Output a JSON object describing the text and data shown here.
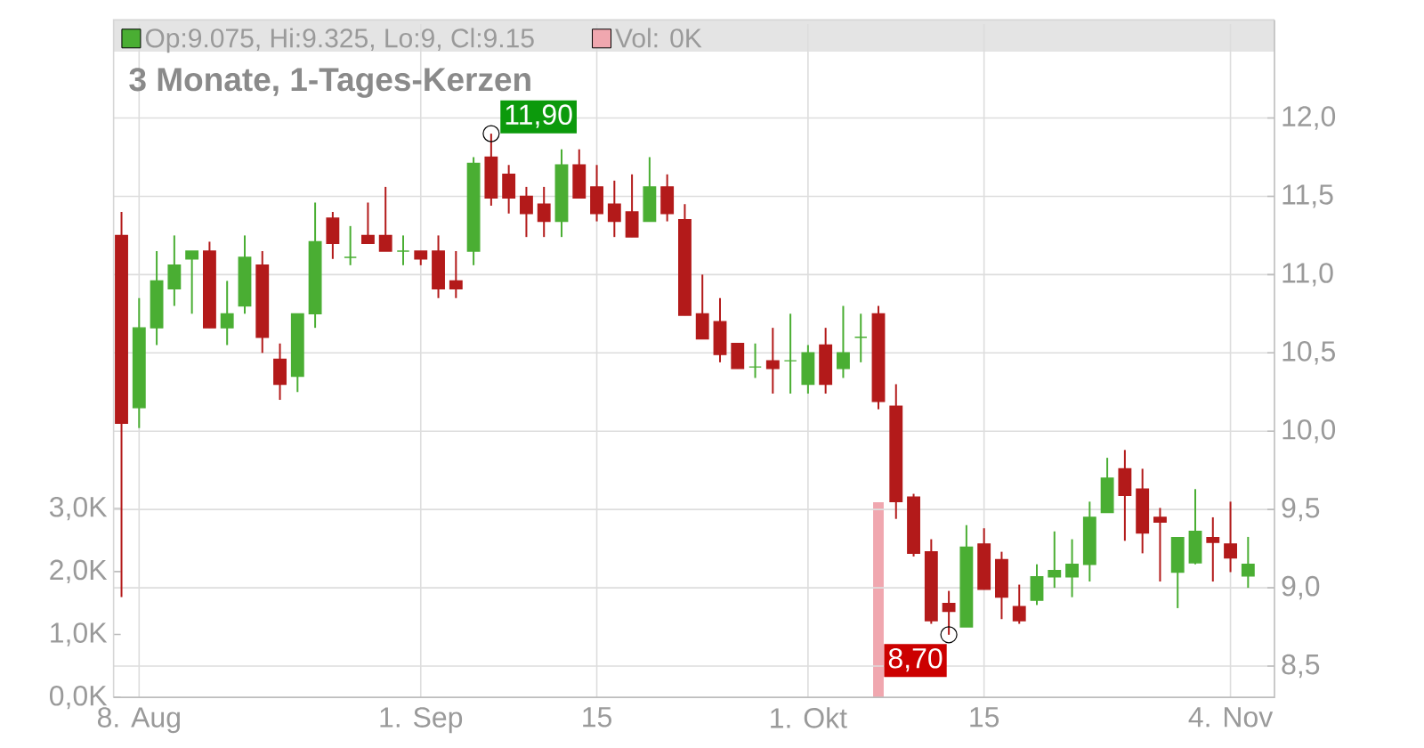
{
  "chart_data": {
    "type": "candlestick",
    "title": "3 Monate, 1-Tages-Kerzen",
    "categories": [
      null,
      "8. Aug",
      null,
      null,
      null,
      null,
      null,
      null,
      null,
      null,
      null,
      null,
      null,
      null,
      null,
      null,
      null,
      "1. Sep",
      null,
      null,
      null,
      null,
      null,
      null,
      null,
      null,
      null,
      "15",
      null,
      null,
      null,
      null,
      null,
      null,
      null,
      null,
      null,
      null,
      null,
      "1. Okt",
      null,
      null,
      null,
      null,
      null,
      null,
      null,
      null,
      null,
      "15",
      null,
      null,
      null,
      null,
      null,
      null,
      null,
      null,
      null,
      null,
      null,
      null,
      null,
      "4. Nov",
      null
    ],
    "series": [
      {
        "name": "Op:9.075, Hi:9.325, Lo:9, Cl:9.15",
        "color": "#4aae33",
        "ohlc": [
          [
            11.25,
            11.4,
            8.94,
            10.05
          ],
          [
            10.15,
            10.85,
            10.02,
            10.66
          ],
          [
            10.66,
            11.15,
            10.55,
            10.96
          ],
          [
            10.91,
            11.25,
            10.8,
            11.06
          ],
          [
            11.1,
            11.15,
            10.75,
            11.15
          ],
          [
            11.15,
            11.21,
            10.66,
            10.66
          ],
          [
            10.66,
            10.96,
            10.55,
            10.75
          ],
          [
            10.8,
            11.25,
            10.75,
            11.11
          ],
          [
            11.06,
            11.15,
            10.5,
            10.6
          ],
          [
            10.46,
            10.56,
            10.2,
            10.3
          ],
          [
            10.35,
            10.75,
            10.25,
            10.75
          ],
          [
            10.75,
            11.46,
            10.66,
            11.21
          ],
          [
            11.36,
            11.4,
            11.1,
            11.2
          ],
          [
            11.11,
            11.31,
            11.06,
            11.11
          ],
          [
            11.25,
            11.46,
            11.2,
            11.2
          ],
          [
            11.25,
            11.56,
            11.15,
            11.15
          ],
          [
            11.15,
            11.25,
            11.06,
            11.15
          ],
          [
            11.15,
            11.15,
            11.06,
            11.1
          ],
          [
            11.15,
            11.25,
            10.85,
            10.91
          ],
          [
            10.96,
            11.15,
            10.85,
            10.91
          ],
          [
            11.15,
            11.75,
            11.06,
            11.71
          ],
          [
            11.75,
            11.9,
            11.44,
            11.49
          ],
          [
            11.64,
            11.7,
            11.39,
            11.49
          ],
          [
            11.5,
            11.56,
            11.24,
            11.39
          ],
          [
            11.45,
            11.56,
            11.24,
            11.34
          ],
          [
            11.34,
            11.8,
            11.24,
            11.7
          ],
          [
            11.7,
            11.8,
            11.49,
            11.49
          ],
          [
            11.56,
            11.7,
            11.34,
            11.39
          ],
          [
            11.45,
            11.6,
            11.24,
            11.34
          ],
          [
            11.4,
            11.64,
            11.24,
            11.24
          ],
          [
            11.34,
            11.75,
            11.34,
            11.56
          ],
          [
            11.56,
            11.64,
            11.34,
            11.39
          ],
          [
            11.35,
            11.45,
            10.74,
            10.74
          ],
          [
            10.75,
            11.0,
            10.59,
            10.59
          ],
          [
            10.7,
            10.85,
            10.44,
            10.49
          ],
          [
            10.56,
            10.56,
            10.4,
            10.4
          ],
          [
            10.41,
            10.56,
            10.34,
            10.41
          ],
          [
            10.45,
            10.66,
            10.24,
            10.4
          ],
          [
            10.45,
            10.75,
            10.24,
            10.45
          ],
          [
            10.3,
            10.55,
            10.24,
            10.5
          ],
          [
            10.55,
            10.66,
            10.24,
            10.3
          ],
          [
            10.4,
            10.8,
            10.34,
            10.5
          ],
          [
            10.6,
            10.75,
            10.44,
            10.6
          ],
          [
            10.75,
            10.8,
            10.14,
            10.19
          ],
          [
            10.16,
            10.3,
            9.44,
            9.55
          ],
          [
            9.58,
            9.6,
            9.2,
            9.22
          ],
          [
            9.23,
            9.31,
            8.77,
            8.79
          ],
          [
            8.9,
            8.98,
            8.7,
            8.85
          ],
          [
            8.75,
            9.4,
            8.75,
            9.26
          ],
          [
            9.28,
            9.38,
            8.99,
            8.99
          ],
          [
            9.18,
            9.23,
            8.8,
            8.94
          ],
          [
            8.88,
            9.02,
            8.77,
            8.79
          ],
          [
            8.92,
            9.15,
            8.89,
            9.07
          ],
          [
            9.07,
            9.36,
            9.0,
            9.11
          ],
          [
            9.07,
            9.31,
            8.94,
            9.15
          ],
          [
            9.15,
            9.55,
            9.04,
            9.45
          ],
          [
            9.48,
            9.83,
            9.48,
            9.7
          ],
          [
            9.76,
            9.88,
            9.3,
            9.59
          ],
          [
            9.63,
            9.76,
            9.22,
            9.35
          ],
          [
            9.45,
            9.51,
            9.04,
            9.42
          ],
          [
            9.1,
            9.32,
            8.87,
            9.32
          ],
          [
            9.16,
            9.63,
            9.15,
            9.36
          ],
          [
            9.32,
            9.45,
            9.04,
            9.29
          ],
          [
            9.28,
            9.55,
            9.1,
            9.19
          ],
          [
            9.075,
            9.325,
            9.0,
            9.15
          ]
        ],
        "colors": [
          "#b31a1a",
          "#4aae33",
          "#4aae33",
          "#4aae33",
          "#4aae33",
          "#b31a1a",
          "#4aae33",
          "#4aae33",
          "#b31a1a",
          "#b31a1a",
          "#4aae33",
          "#4aae33",
          "#b31a1a",
          "#4aae33",
          "#b31a1a",
          "#b31a1a",
          "#4aae33",
          "#b31a1a",
          "#b31a1a",
          "#b31a1a",
          "#4aae33",
          "#b31a1a",
          "#b31a1a",
          "#b31a1a",
          "#b31a1a",
          "#4aae33",
          "#b31a1a",
          "#b31a1a",
          "#b31a1a",
          "#b31a1a",
          "#4aae33",
          "#b31a1a",
          "#b31a1a",
          "#b31a1a",
          "#b31a1a",
          "#b31a1a",
          "#4aae33",
          "#b31a1a",
          "#4aae33",
          "#4aae33",
          "#b31a1a",
          "#4aae33",
          "#4aae33",
          "#b31a1a",
          "#b31a1a",
          "#b31a1a",
          "#b31a1a",
          "#b31a1a",
          "#4aae33",
          "#b31a1a",
          "#b31a1a",
          "#b31a1a",
          "#4aae33",
          "#4aae33",
          "#4aae33",
          "#4aae33",
          "#4aae33",
          "#b31a1a",
          "#b31a1a",
          "#b31a1a",
          "#4aae33",
          "#4aae33",
          "#b31a1a",
          "#b31a1a",
          "#4aae33"
        ]
      },
      {
        "name": "Vol: 0K",
        "type": "bar",
        "axis": "y2",
        "color": "#f0a7af",
        "values": [
          null,
          null,
          null,
          null,
          null,
          null,
          null,
          null,
          null,
          null,
          null,
          null,
          null,
          null,
          null,
          null,
          null,
          null,
          null,
          null,
          null,
          null,
          null,
          null,
          null,
          null,
          null,
          null,
          null,
          null,
          null,
          null,
          null,
          null,
          null,
          null,
          null,
          null,
          null,
          null,
          null,
          null,
          null,
          3.1,
          null,
          null,
          null,
          null,
          null,
          null,
          null,
          null,
          null,
          null,
          null,
          null,
          null,
          null,
          null,
          null,
          null,
          null,
          null,
          null,
          null
        ]
      }
    ],
    "ylim": [
      8.3,
      12.6
    ],
    "yticks": [
      {
        "value": 8.5,
        "label": "8,5"
      },
      {
        "value": 9,
        "label": "9,0"
      },
      {
        "value": 9.5,
        "label": "9,5"
      },
      {
        "value": 10,
        "label": "10,0"
      },
      {
        "value": 10.5,
        "label": "10,5"
      },
      {
        "value": 11,
        "label": "11,0"
      },
      {
        "value": 11.5,
        "label": "11,5"
      },
      {
        "value": 12,
        "label": "12,0"
      }
    ],
    "y2lim": [
      0,
      10.7
    ],
    "y2ticks": [
      {
        "value": 0,
        "label": "0,0K"
      },
      {
        "value": 1,
        "label": "1,0K"
      },
      {
        "value": 2,
        "label": "2,0K"
      },
      {
        "value": 3,
        "label": "3,0K"
      }
    ],
    "annotations": [
      "11,90",
      "8,70"
    ],
    "grid": true,
    "legend": "top left"
  }
}
